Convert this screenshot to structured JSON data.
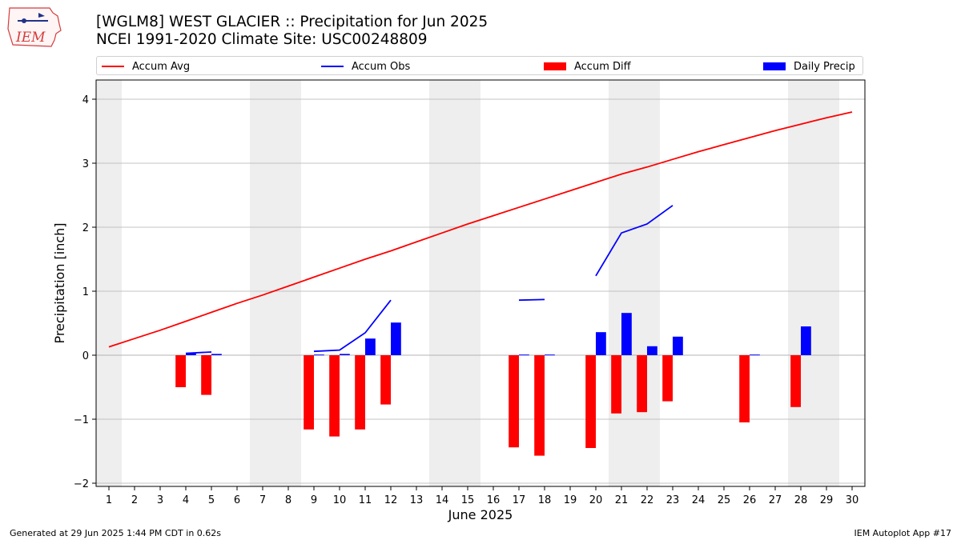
{
  "header": {
    "title_line1": "[WGLM8] WEST GLACIER :: Precipitation for Jun 2025",
    "title_line2": "NCEI 1991-2020 Climate Site: USC00248809",
    "logo_text": "IEM"
  },
  "footer": {
    "generated": "Generated at 29 Jun 2025 1:44 PM CDT in 0.62s",
    "app": "IEM Autoplot App #17"
  },
  "colors": {
    "avg": "#ff0000",
    "obs": "#0000ff",
    "diff": "#ff0000",
    "daily": "#0000ff",
    "weekend_band": "#eeeeee",
    "grid": "#b0b0b0"
  },
  "chart_data": {
    "type": "bar",
    "title": "[WGLM8] WEST GLACIER :: Precipitation for Jun 2025",
    "subtitle": "NCEI 1991-2020 Climate Site: USC00248809",
    "xlabel": "June 2025",
    "ylabel": "Precipitation [inch]",
    "xlim": [
      0.5,
      30.5
    ],
    "ylim": [
      -2.05,
      4.3
    ],
    "yticks": [
      -2,
      -1,
      0,
      1,
      2,
      3,
      4
    ],
    "ytick_labels": [
      "−2",
      "−1",
      "0",
      "1",
      "2",
      "3",
      "4"
    ],
    "x": [
      1,
      2,
      3,
      4,
      5,
      6,
      7,
      8,
      9,
      10,
      11,
      12,
      13,
      14,
      15,
      16,
      17,
      18,
      19,
      20,
      21,
      22,
      23,
      24,
      25,
      26,
      27,
      28,
      29,
      30
    ],
    "grid": "horizontal",
    "legend_position": "top",
    "weekend_bands": [
      [
        0.5,
        1.5
      ],
      [
        6.5,
        8.5
      ],
      [
        13.5,
        15.5
      ],
      [
        20.5,
        22.5
      ],
      [
        27.5,
        29.5
      ]
    ],
    "series": [
      {
        "name": "Accum Avg",
        "type": "line",
        "values": [
          0.13,
          0.26,
          0.39,
          0.53,
          0.67,
          0.81,
          0.94,
          1.08,
          1.22,
          1.36,
          1.5,
          1.63,
          1.77,
          1.91,
          2.05,
          2.18,
          2.31,
          2.44,
          2.57,
          2.7,
          2.83,
          2.94,
          3.06,
          3.18,
          3.29,
          3.4,
          3.51,
          3.61,
          3.71,
          3.8
        ]
      },
      {
        "name": "Accum Obs",
        "type": "line",
        "values": [
          null,
          null,
          null,
          0.03,
          0.05,
          null,
          null,
          null,
          0.06,
          0.08,
          0.35,
          0.86,
          null,
          null,
          null,
          null,
          0.86,
          0.87,
          null,
          1.24,
          1.91,
          2.05,
          2.34,
          null,
          null,
          null,
          null,
          null,
          null,
          null
        ]
      },
      {
        "name": "Accum Diff",
        "type": "bar",
        "values": [
          null,
          null,
          null,
          -0.5,
          -0.62,
          null,
          null,
          null,
          -1.16,
          -1.27,
          -1.16,
          -0.77,
          null,
          null,
          null,
          null,
          -1.44,
          -1.57,
          null,
          -1.45,
          -0.91,
          -0.89,
          -0.72,
          null,
          null,
          -1.05,
          null,
          -0.81,
          null,
          null
        ]
      },
      {
        "name": "Daily Precip",
        "type": "bar",
        "values": [
          null,
          null,
          null,
          0.03,
          0.02,
          null,
          null,
          null,
          0.01,
          0.02,
          0.26,
          0.51,
          null,
          null,
          null,
          null,
          0.01,
          0.01,
          null,
          0.36,
          0.66,
          0.14,
          0.29,
          null,
          null,
          0.01,
          null,
          0.45,
          null,
          null
        ]
      }
    ]
  }
}
